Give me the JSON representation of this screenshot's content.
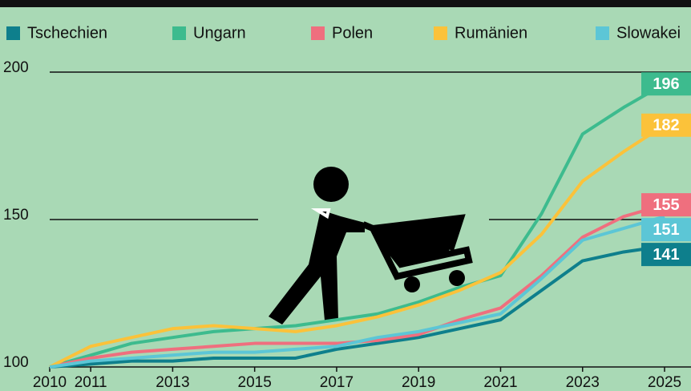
{
  "chart_data": {
    "type": "line",
    "x": [
      2010,
      2011,
      2012,
      2013,
      2014,
      2015,
      2016,
      2017,
      2018,
      2019,
      2020,
      2021,
      2022,
      2023,
      2024,
      2025
    ],
    "xlim": [
      2010,
      2025
    ],
    "xticks": [
      2010,
      2011,
      2013,
      2015,
      2017,
      2019,
      2021,
      2023,
      2025
    ],
    "ylim": [
      100,
      200
    ],
    "yticks": [
      100,
      150,
      200
    ],
    "grid": true,
    "legend": "top",
    "series": [
      {
        "name": "Tschechien",
        "color": "#0e7f8c",
        "values": [
          100,
          101,
          102,
          102,
          103,
          103,
          103,
          106,
          108,
          110,
          113,
          116,
          126,
          136,
          139,
          141
        ]
      },
      {
        "name": "Ungarn",
        "color": "#3dbb8e",
        "values": [
          100,
          104,
          108,
          110,
          112,
          113,
          114,
          116,
          118,
          122,
          127,
          131,
          152,
          179,
          188,
          196
        ]
      },
      {
        "name": "Polen",
        "color": "#ef6f7e",
        "values": [
          100,
          103,
          105,
          106,
          107,
          108,
          108,
          108,
          109,
          111,
          116,
          120,
          131,
          144,
          151,
          155
        ]
      },
      {
        "name": "Rumänien",
        "color": "#fbc23a",
        "values": [
          100,
          107,
          110,
          113,
          114,
          113,
          112,
          114,
          117,
          121,
          126,
          132,
          145,
          163,
          173,
          182
        ]
      },
      {
        "name": "Slowakei",
        "color": "#5cc6d6",
        "values": [
          100,
          102,
          103,
          104,
          105,
          105,
          106,
          107,
          110,
          112,
          115,
          118,
          130,
          143,
          147,
          151
        ]
      }
    ]
  }
}
